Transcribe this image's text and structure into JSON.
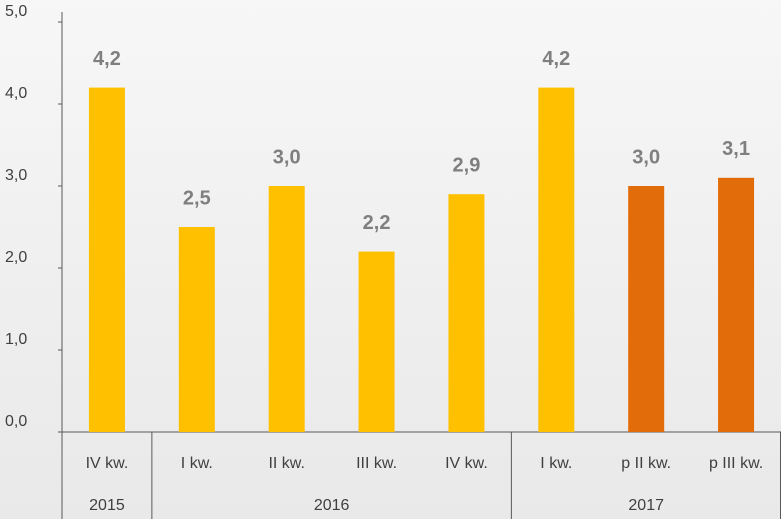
{
  "chart_data": {
    "type": "bar",
    "groups": [
      {
        "name": "2015",
        "categories": [
          "IV kw."
        ],
        "values": [
          4.2
        ],
        "value_labels": [
          "4,2"
        ],
        "colors": [
          "#ffc000"
        ]
      },
      {
        "name": "2016",
        "categories": [
          "I kw.",
          "II kw.",
          "III kw.",
          "IV kw."
        ],
        "values": [
          2.5,
          3.0,
          2.2,
          2.9
        ],
        "value_labels": [
          "2,5",
          "3,0",
          "2,2",
          "2,9"
        ],
        "colors": [
          "#ffc000",
          "#ffc000",
          "#ffc000",
          "#ffc000"
        ]
      },
      {
        "name": "2017",
        "categories": [
          "I kw.",
          "p II kw.",
          "p III kw."
        ],
        "values": [
          4.2,
          3.0,
          3.1
        ],
        "value_labels": [
          "4,2",
          "3,0",
          "3,1"
        ],
        "colors": [
          "#ffc000",
          "#e36c0a",
          "#e36c0a"
        ]
      }
    ],
    "ylim": [
      0,
      5
    ],
    "yticks": [
      {
        "value": 0,
        "label": "0,0"
      },
      {
        "value": 1,
        "label": "1,0"
      },
      {
        "value": 2,
        "label": "2,0"
      },
      {
        "value": 3,
        "label": "3,0"
      },
      {
        "value": 4,
        "label": "4,0"
      },
      {
        "value": 5,
        "label": "5,0"
      }
    ]
  }
}
